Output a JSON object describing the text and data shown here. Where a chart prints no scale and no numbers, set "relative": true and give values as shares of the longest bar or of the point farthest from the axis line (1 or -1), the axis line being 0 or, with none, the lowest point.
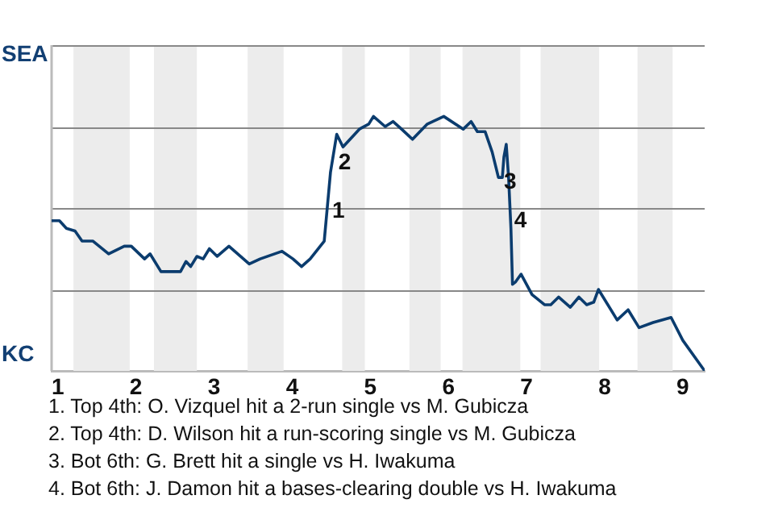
{
  "chart_data": {
    "type": "line",
    "relative": true,
    "x": [
      0.92,
      1.02,
      1.11,
      1.22,
      1.31,
      1.45,
      1.65,
      1.85,
      1.94,
      2.11,
      2.18,
      2.32,
      2.57,
      2.64,
      2.7,
      2.78,
      2.86,
      2.94,
      3.04,
      3.19,
      3.45,
      3.59,
      3.87,
      4.01,
      4.12,
      4.23,
      4.41,
      4.49,
      4.57,
      4.65,
      4.86,
      4.98,
      5.04,
      5.19,
      5.29,
      5.4,
      5.54,
      5.73,
      5.94,
      6.19,
      6.29,
      6.37,
      6.47,
      6.56,
      6.64,
      6.69,
      6.71,
      6.74,
      6.77,
      6.8,
      6.82,
      6.86,
      6.93,
      7.07,
      7.23,
      7.31,
      7.41,
      7.56,
      7.67,
      7.77,
      7.86,
      7.92,
      8.16,
      8.3,
      8.44,
      8.62,
      8.85,
      9,
      9.28
    ],
    "series": [
      {
        "color": "#0b3c6e",
        "values": [
          0.59,
          0.59,
          0.56,
          0.55,
          0.51,
          0.51,
          0.46,
          0.49,
          0.49,
          0.44,
          0.46,
          0.39,
          0.39,
          0.43,
          0.41,
          0.45,
          0.44,
          0.48,
          0.45,
          0.49,
          0.42,
          0.44,
          0.47,
          0.44,
          0.41,
          0.44,
          0.51,
          0.78,
          0.93,
          0.88,
          0.95,
          0.97,
          1,
          0.96,
          0.98,
          0.95,
          0.91,
          0.97,
          1,
          0.95,
          0.98,
          0.94,
          0.94,
          0.86,
          0.76,
          0.76,
          0.84,
          0.89,
          0.76,
          0.56,
          0.34,
          0.35,
          0.38,
          0.3,
          0.26,
          0.26,
          0.29,
          0.25,
          0.29,
          0.26,
          0.27,
          0.32,
          0.2,
          0.24,
          0.17,
          0.19,
          0.21,
          0.12,
          0
        ]
      }
    ],
    "xlim": [
      0.92,
      9.28
    ],
    "xticks": [
      1,
      2,
      3,
      4,
      5,
      6,
      7,
      8,
      9
    ],
    "legend": false,
    "marker": "none",
    "line_style": "solid",
    "ref_lines": [
      {
        "axis": "y",
        "value": 0.32,
        "color": "#888888"
      },
      {
        "axis": "y",
        "value": 0.64,
        "color": "#888888"
      },
      {
        "axis": "y",
        "value": 0.96,
        "color": "#888888"
      },
      {
        "axis": "y",
        "value": 1.28,
        "color": "#888888"
      }
    ],
    "bands": [
      {
        "axis": "x",
        "from": 1.2,
        "to": 1.92,
        "color": "#ececec"
      },
      {
        "axis": "x",
        "from": 2.23,
        "to": 2.78,
        "color": "#ececec"
      },
      {
        "axis": "x",
        "from": 3.43,
        "to": 3.89,
        "color": "#ececec"
      },
      {
        "axis": "x",
        "from": 4.64,
        "to": 4.93,
        "color": "#ececec"
      },
      {
        "axis": "x",
        "from": 5.5,
        "to": 5.9,
        "color": "#ececec"
      },
      {
        "axis": "x",
        "from": 6.18,
        "to": 6.92,
        "color": "#ececec"
      },
      {
        "axis": "x",
        "from": 7.18,
        "to": 7.93,
        "color": "#ececec"
      },
      {
        "axis": "x",
        "from": 8.42,
        "to": 8.87,
        "color": "#ececec"
      }
    ],
    "annotations": [
      "SEA",
      "KC",
      {
        "text": "1",
        "x": 4.49,
        "y": 0.625
      },
      {
        "text": "2",
        "x": 4.57,
        "y": 0.816
      },
      {
        "text": "3",
        "x": 6.69,
        "y": 0.74
      },
      {
        "text": "4",
        "x": 6.82,
        "y": 0.587
      },
      "1. Top 4th: O. Vizquel hit a 2-run single vs M. Gubicza",
      "2. Top 4th: D. Wilson hit a run-scoring single vs M. Gubicza",
      "3. Bot 6th: G. Brett hit a single vs H. Iwakuma",
      "4. Bot 6th: J. Damon hit a bases-clearing double vs H. Iwakuma"
    ]
  }
}
